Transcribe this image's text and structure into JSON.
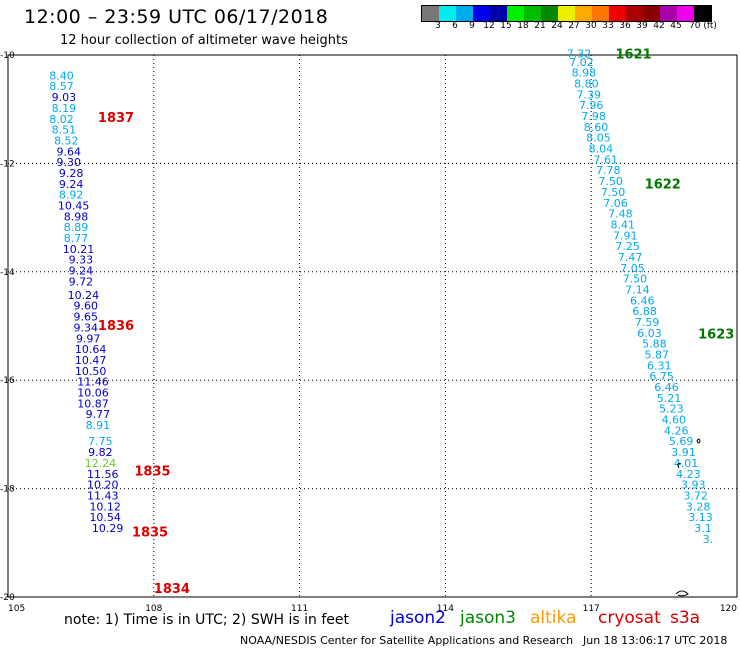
{
  "header": {
    "title": "12:00 – 23:59 UTC 06/17/2018",
    "subtitle": "12 hour collection of altimeter wave heights"
  },
  "color_scale": {
    "labels": [
      "3",
      "6",
      "9",
      "12",
      "15",
      "18",
      "21",
      "24",
      "27",
      "30",
      "33",
      "36",
      "39",
      "42",
      "45",
      "70 (ft)"
    ],
    "colors": [
      "#777777",
      "#00eeee",
      "#00aaee",
      "#0000ee",
      "#0000aa",
      "#00ee00",
      "#00bb00",
      "#008800",
      "#eeee00",
      "#ffaa00",
      "#ff7700",
      "#ee0000",
      "#aa0000",
      "#880000",
      "#aa00aa",
      "#ee00ee",
      "#000000"
    ]
  },
  "axes": {
    "lon_labels": [
      "105",
      "108",
      "111",
      "114",
      "117",
      "120"
    ],
    "lat_labels": [
      "-10",
      "-12",
      "-14",
      "-16",
      "-18",
      "-20"
    ]
  },
  "track_times": [
    {
      "text": "1837",
      "color": "#dd0000",
      "lon": 106.85,
      "lat": -11.24
    },
    {
      "text": "1836",
      "color": "#dd0000",
      "lon": 106.85,
      "lat": -15.07
    },
    {
      "text": "1835",
      "color": "#dd0000",
      "lon": 107.6,
      "lat": -17.76
    },
    {
      "text": "1835",
      "color": "#dd0000",
      "lon": 107.55,
      "lat": -18.88
    },
    {
      "text": "1834",
      "color": "#dd0000",
      "lon": 108.0,
      "lat": -19.93
    },
    {
      "text": "1621",
      "color": "#007700",
      "lon": 117.5,
      "lat": -10.06
    },
    {
      "text": "1622",
      "color": "#007700",
      "lon": 118.1,
      "lat": -12.46
    },
    {
      "text": "1623",
      "color": "#007700",
      "lon": 119.2,
      "lat": -15.23
    }
  ],
  "west_track": {
    "values": [
      "8.40",
      "8.57",
      "9.03",
      "8.19",
      "8.02",
      "8.51",
      "8.52",
      "9.64",
      "9.30",
      "9.28",
      "9.24",
      "8.92",
      "10.45",
      "8.98",
      "8.89",
      "8.77",
      "10.21",
      "9.33",
      "9.24",
      "9.72",
      "10.24",
      "9.60",
      "9.65",
      "9.34",
      "9.97",
      "10.64",
      "10.47",
      "10.50",
      "11.46",
      "10.06",
      "10.87",
      "9.77",
      "8.91",
      "7.75",
      "9.82",
      "12.24",
      "11.56",
      "10.20",
      "11.43",
      "10.12",
      "10.54",
      "10.29"
    ],
    "lon": [
      106.1,
      106.1,
      106.15,
      106.15,
      106.1,
      106.15,
      106.2,
      106.25,
      106.25,
      106.3,
      106.3,
      106.3,
      106.35,
      106.4,
      106.4,
      106.4,
      106.45,
      106.5,
      106.5,
      106.5,
      106.55,
      106.6,
      106.6,
      106.6,
      106.65,
      106.7,
      106.7,
      106.7,
      106.75,
      106.75,
      106.75,
      106.85,
      106.85,
      106.9,
      106.9,
      106.9,
      106.95,
      106.95,
      106.95,
      107.0,
      107.0,
      107.05
    ],
    "lat": [
      -10.45,
      -10.65,
      -10.85,
      -11.05,
      -11.25,
      -11.45,
      -11.65,
      -11.85,
      -12.05,
      -12.25,
      -12.45,
      -12.65,
      -12.85,
      -13.05,
      -13.25,
      -13.45,
      -13.65,
      -13.85,
      -14.05,
      -14.25,
      -14.5,
      -14.7,
      -14.9,
      -15.1,
      -15.3,
      -15.5,
      -15.7,
      -15.9,
      -16.1,
      -16.3,
      -16.5,
      -16.7,
      -16.9,
      -17.2,
      -17.4,
      -17.6,
      -17.8,
      -18.0,
      -18.2,
      -18.4,
      -18.6,
      -18.8
    ],
    "colors": [
      "#00aaee",
      "#00aaee",
      "#0000cc",
      "#00aaee",
      "#00aaee",
      "#00aaee",
      "#00aaee",
      "#0000cc",
      "#0000cc",
      "#0000cc",
      "#0000cc",
      "#00aaee",
      "#0000cc",
      "#0000cc",
      "#00aaee",
      "#00aaee",
      "#0000cc",
      "#0000cc",
      "#0000cc",
      "#0000cc",
      "#0000cc",
      "#0000cc",
      "#0000cc",
      "#0000cc",
      "#0000cc",
      "#0000cc",
      "#0000cc",
      "#0000cc",
      "#0000cc",
      "#0000cc",
      "#0000cc",
      "#0000cc",
      "#00aaee",
      "#00aaee",
      "#0000cc",
      "#66cc33",
      "#0000cc",
      "#0000cc",
      "#0000cc",
      "#0000cc",
      "#0000cc",
      "#0000cc"
    ]
  },
  "east_track": {
    "values": [
      "7.32",
      "7.02",
      "8.98",
      "8.80",
      "7.39",
      "7.96",
      "7.98",
      "8.60",
      "8.05",
      "8.04",
      "7.61",
      "7.78",
      "7.50",
      "7.50",
      "7.06",
      "7.48",
      "8.41",
      "7.91",
      "7.25",
      "7.47",
      "7.05",
      "7.50",
      "7.14",
      "6.46",
      "6.88",
      "7.59",
      "6.03",
      "5.88",
      "5.87",
      "6.31",
      "6.75",
      "6.46",
      "5.21",
      "5.23",
      "4.60",
      "4.26",
      "5.69",
      "3.91",
      "4.01",
      "4.23",
      "3.93",
      "3.72",
      "3.28",
      "3.13",
      "3.1",
      "3."
    ],
    "lon": [
      116.75,
      116.8,
      116.85,
      116.9,
      116.95,
      117.0,
      117.05,
      117.1,
      117.15,
      117.2,
      117.3,
      117.35,
      117.4,
      117.45,
      117.5,
      117.6,
      117.65,
      117.7,
      117.75,
      117.8,
      117.85,
      117.9,
      117.95,
      118.05,
      118.1,
      118.15,
      118.2,
      118.3,
      118.35,
      118.4,
      118.45,
      118.55,
      118.6,
      118.65,
      118.7,
      118.75,
      118.85,
      118.9,
      118.95,
      119.0,
      119.1,
      119.15,
      119.2,
      119.25,
      119.3,
      119.4
    ],
    "lat": [
      -10.05,
      -10.2,
      -10.4,
      -10.6,
      -10.8,
      -11.0,
      -11.2,
      -11.4,
      -11.6,
      -11.8,
      -12.0,
      -12.2,
      -12.4,
      -12.6,
      -12.8,
      -13.0,
      -13.2,
      -13.4,
      -13.6,
      -13.8,
      -14.0,
      -14.2,
      -14.4,
      -14.6,
      -14.8,
      -15.0,
      -15.2,
      -15.4,
      -15.6,
      -15.8,
      -16.0,
      -16.2,
      -16.4,
      -16.6,
      -16.8,
      -17.0,
      -17.2,
      -17.4,
      -17.6,
      -17.8,
      -18.0,
      -18.2,
      -18.4,
      -18.6,
      -18.8,
      -19.0
    ],
    "color": "#00aaee"
  },
  "satellites": [
    {
      "name": "jason2",
      "color": "#0000dd"
    },
    {
      "name": "jason3",
      "color": "#008800"
    },
    {
      "name": "altika",
      "color": "#ff9900"
    },
    {
      "name": "cryosat",
      "color": "#dd0000"
    },
    {
      "name": "s3a",
      "color": "#cc0000"
    }
  ],
  "footer": {
    "note": "note: 1) Time is in UTC; 2) SWH is in feet",
    "credit": "NOAA/NESDIS Center for Satellite Applications and Research",
    "generated": "Jun 18 13:06:17 UTC 2018"
  }
}
